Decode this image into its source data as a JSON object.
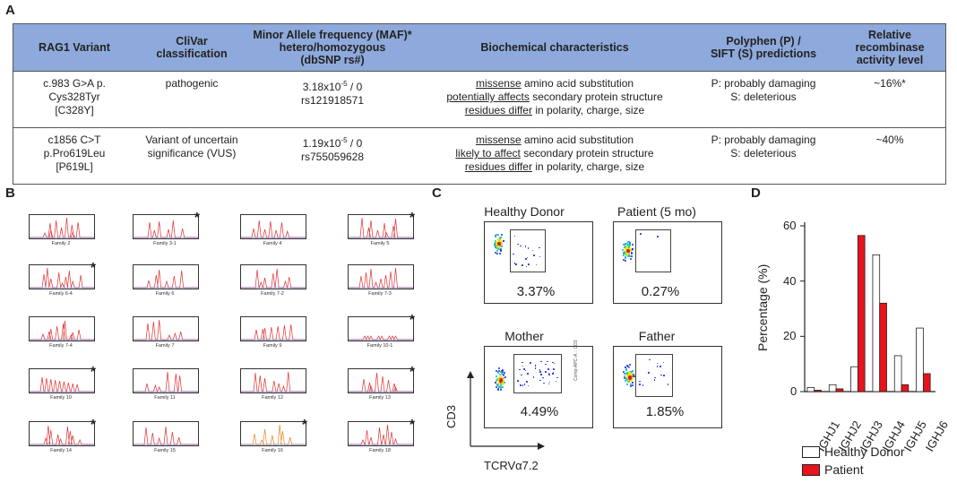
{
  "panels": {
    "a": "A",
    "b": "B",
    "c": "C",
    "d": "D"
  },
  "tableA": {
    "headers": {
      "h1": "RAG1 Variant",
      "h2a": "CliVar",
      "h2b": "classification",
      "h3a": "Minor Allele frequency (MAF)*",
      "h3b": "hetero/homozygous",
      "h3c": "(dbSNP rs#)",
      "h4": "Biochemical characteristics",
      "h5a": "Polyphen (P) /",
      "h5b": "SIFT (S) predictions",
      "h6a": "Relative recombinase",
      "h6b": "activity level"
    },
    "rows": [
      {
        "variant1": "c.983 G>A p.",
        "variant2": "Cys328Tyr",
        "variant3": "[C328Y]",
        "clinvar1": "pathogenic",
        "clinvar2": "",
        "maf_base": "3.18x10",
        "maf_exp": "-5",
        "maf_rest": " / 0",
        "rs": "rs121918571",
        "bio1u": "missense",
        "bio1": " amino acid substitution",
        "bio2u": "potentially affects",
        "bio2": " secondary protein structure",
        "bio3u": "residues differ",
        "bio3": " in polarity, charge, size",
        "pred1": "P: probably damaging",
        "pred2": "S: deleterious",
        "activity": "~16%*"
      },
      {
        "variant1": "c1856 C>T",
        "variant2": "p.Pro619Leu",
        "variant3": "[P619L]",
        "clinvar1": "Variant of uncertain",
        "clinvar2": "significance (VUS)",
        "maf_base": "1.19x10",
        "maf_exp": "-5",
        "maf_rest": " / 0",
        "rs": "rs755059628",
        "bio1u": "missense",
        "bio1": " amino acid substitution",
        "bio2u": "likely to affect",
        "bio2": " secondary protein structure",
        "bio3u": "residues differ",
        "bio3": " in polarity, charge, size",
        "pred1": "P: probably damaging",
        "pred2": "S: deleterious",
        "activity": "~40%"
      }
    ]
  },
  "panelB": {
    "families": [
      "Family 2",
      "Family 3-1",
      "Family 4",
      "Family 5",
      "Family 6-4",
      "Family 6",
      "Family 7-2",
      "Family 7-3",
      "Family 7-4",
      "Family 7",
      "Family 9",
      "Family 10-1",
      "Family 10",
      "Family 11",
      "Family 12",
      "Family 13",
      "Family 14",
      "Family 15",
      "Family 16",
      "Family 18"
    ],
    "starred": [
      false,
      true,
      false,
      true,
      true,
      false,
      false,
      false,
      false,
      false,
      false,
      true,
      true,
      false,
      false,
      true,
      true,
      false,
      true,
      true
    ],
    "star": "*"
  },
  "panelC": {
    "plots": [
      {
        "title": "Healthy Donor",
        "pct": "3.37%"
      },
      {
        "title": "Patient (5 mo)",
        "pct": "0.27%"
      },
      {
        "title": "Mother",
        "pct": "4.49%"
      },
      {
        "title": "Father",
        "pct": "1.85%"
      }
    ],
    "yaxis": "CD3",
    "xaxis": "TCRVα7.2",
    "inner_ylabel": "Comp-APC-A :: CD3"
  },
  "chart_data": {
    "type": "bar",
    "title": "",
    "categories": [
      "IGHJ1",
      "IGHJ2",
      "IGHJ3",
      "IGHJ4",
      "IGHJ5",
      "IGHJ6"
    ],
    "series": [
      {
        "name": "Healthy Donor",
        "values": [
          1.5,
          2.5,
          9,
          49.5,
          13,
          23
        ],
        "color": "#ffffff"
      },
      {
        "name": "Patient",
        "values": [
          0.5,
          1,
          56.5,
          32,
          2.5,
          6.5
        ],
        "color": "#e8141b"
      }
    ],
    "ylabel": "Percentage (%)",
    "xlabel": "",
    "ylim": [
      0,
      60
    ],
    "yticks": [
      "0",
      "20",
      "40",
      "60"
    ],
    "legend_position": "bottom"
  }
}
